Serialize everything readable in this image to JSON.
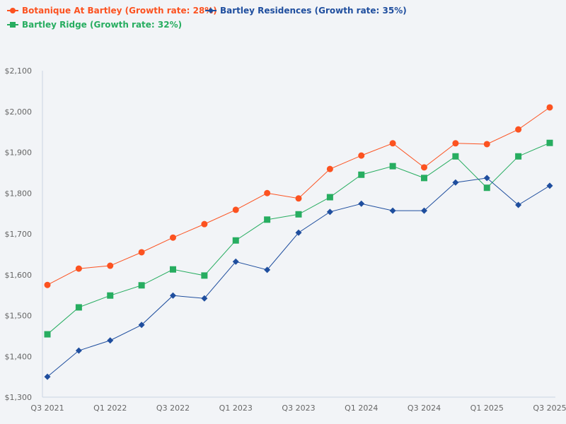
{
  "legend": [
    {
      "label": "Botanique At Bartley (Growth rate: 28%)",
      "color": "#fc5220",
      "marker": "circle"
    },
    {
      "label": "Bartley Residences (Growth rate: 35%)",
      "color": "#1f4e9e",
      "marker": "diamond"
    },
    {
      "label": "Bartley Ridge (Growth rate: 32%)",
      "color": "#27ad60",
      "marker": "square"
    }
  ],
  "chart_data": {
    "type": "line",
    "title": "",
    "xlabel": "",
    "ylabel": "",
    "ylim": [
      1300,
      2100
    ],
    "y_ticks": [
      "$1,300",
      "$1,400",
      "$1,500",
      "$1,600",
      "$1,700",
      "$1,800",
      "$1,900",
      "$2,000",
      "$2,100"
    ],
    "y_tick_values": [
      1300,
      1400,
      1500,
      1600,
      1700,
      1800,
      1900,
      2000,
      2100
    ],
    "x": [
      "Q3 2021",
      "Q4 2021",
      "Q1 2022",
      "Q2 2022",
      "Q3 2022",
      "Q4 2022",
      "Q1 2023",
      "Q2 2023",
      "Q3 2023",
      "Q4 2023",
      "Q1 2024",
      "Q2 2024",
      "Q3 2024",
      "Q4 2024",
      "Q1 2025",
      "Q2 2025",
      "Q3 2025"
    ],
    "x_tick_labels": [
      "Q3 2021",
      "",
      "Q1 2022",
      "",
      "Q3 2022",
      "",
      "Q1 2023",
      "",
      "Q3 2023",
      "",
      "Q1 2024",
      "",
      "Q3 2024",
      "",
      "Q1 2025",
      "",
      "Q3 2025"
    ],
    "grid": false,
    "legend_position": "top-left",
    "series": [
      {
        "name": "Botanique At Bartley (Growth rate: 28%)",
        "color": "#fc5220",
        "marker": "circle",
        "values": [
          1575,
          1615,
          1622,
          1655,
          1691,
          1724,
          1759,
          1800,
          1787,
          1859,
          1892,
          1922,
          1863,
          1922,
          1920,
          1956,
          2010
        ]
      },
      {
        "name": "Bartley Residences (Growth rate: 35%)",
        "color": "#1f4e9e",
        "marker": "diamond",
        "values": [
          1350,
          1414,
          1439,
          1477,
          1549,
          1542,
          1632,
          1612,
          1703,
          1754,
          1774,
          1757,
          1757,
          1826,
          1837,
          1771,
          1818
        ]
      },
      {
        "name": "Bartley Ridge (Growth rate: 32%)",
        "color": "#27ad60",
        "marker": "square",
        "values": [
          1454,
          1520,
          1549,
          1574,
          1613,
          1598,
          1684,
          1735,
          1748,
          1790,
          1845,
          1866,
          1837,
          1890,
          1813,
          1890,
          1923
        ]
      }
    ]
  }
}
